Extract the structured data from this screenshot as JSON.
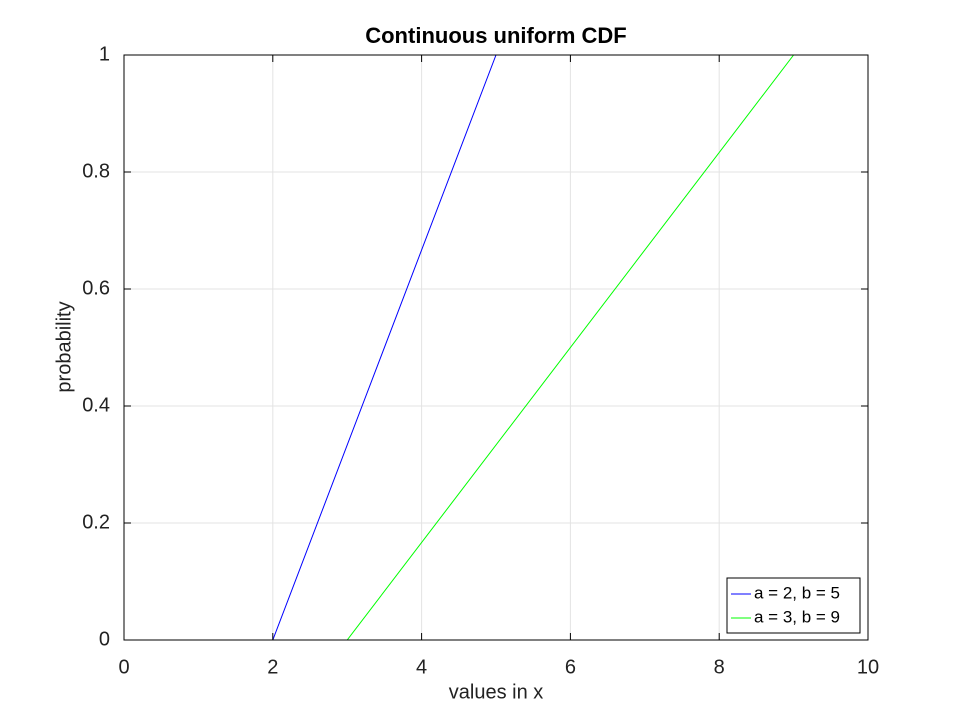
{
  "chart_data": {
    "type": "line",
    "title": "Continuous uniform CDF",
    "xlabel": "values in x",
    "ylabel": "probability",
    "series": [
      {
        "name": "a = 2, b = 5",
        "color": "#0000ff",
        "x": [
          0,
          2,
          5,
          10
        ],
        "values": [
          0,
          0,
          1,
          1
        ]
      },
      {
        "name": "a = 3, b = 9",
        "color": "#00ff00",
        "x": [
          0,
          3,
          9,
          10
        ],
        "values": [
          0,
          0,
          1,
          1
        ]
      }
    ],
    "xlim": [
      0,
      10
    ],
    "xticks": [
      0,
      2,
      4,
      6,
      8,
      10
    ],
    "ylim": [
      0,
      1
    ],
    "yticks": [
      0,
      0.2,
      0.4,
      0.6,
      0.8,
      1
    ],
    "grid": true,
    "legend": "southeast"
  }
}
